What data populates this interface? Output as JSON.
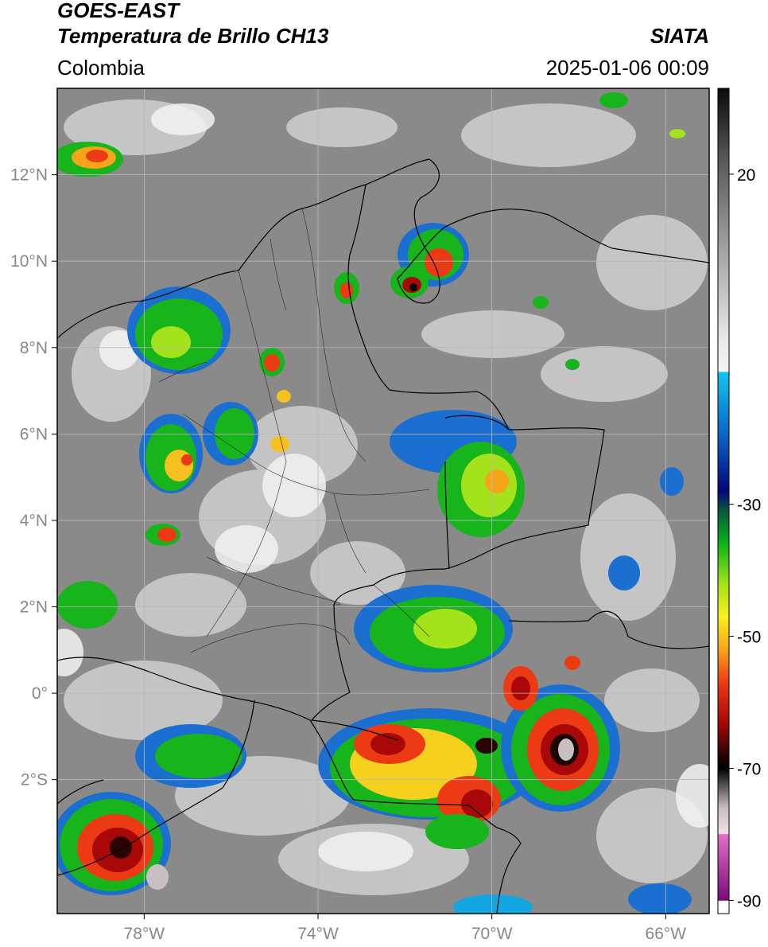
{
  "header": {
    "satellite": "GOES-EAST",
    "product": "Temperatura de Brillo CH13",
    "region": "Colombia",
    "brand": "SIATA",
    "datetime": "2025-01-06 00:09"
  },
  "map": {
    "lon_range": [
      -80,
      -65
    ],
    "lat_range": [
      -5.1,
      14
    ],
    "lon_ticks": [
      {
        "value": -78,
        "label": "78°W"
      },
      {
        "value": -74,
        "label": "74°W"
      },
      {
        "value": -70,
        "label": "70°W"
      },
      {
        "value": -66,
        "label": "66°W"
      }
    ],
    "lat_ticks": [
      {
        "value": 12,
        "label": "12°N"
      },
      {
        "value": 10,
        "label": "10°N"
      },
      {
        "value": 8,
        "label": "8°N"
      },
      {
        "value": 6,
        "label": "6°N"
      },
      {
        "value": 4,
        "label": "4°N"
      },
      {
        "value": 2,
        "label": "2°N"
      },
      {
        "value": 0,
        "label": "0°"
      },
      {
        "value": -2,
        "label": "2°S"
      }
    ],
    "background_color": "#8a8a8a",
    "border_color": "#000000",
    "grid_color": "#b8b8b8"
  },
  "colorbar": {
    "range": [
      -92,
      33
    ],
    "ticks": [
      {
        "value": 20,
        "label": "20"
      },
      {
        "value": -30,
        "label": "-30"
      },
      {
        "value": -50,
        "label": "-50"
      },
      {
        "value": -70,
        "label": "-70"
      },
      {
        "value": -90,
        "label": "-90"
      }
    ],
    "stops": [
      {
        "t": 33,
        "color": "#0a0a0a"
      },
      {
        "t": 22,
        "color": "#5a5a5a"
      },
      {
        "t": 10,
        "color": "#9a9a9a"
      },
      {
        "t": -5,
        "color": "#e8e8e8"
      },
      {
        "t": -9.9,
        "color": "#f5f5f5"
      },
      {
        "t": -10,
        "color": "#12c6ee"
      },
      {
        "t": -20,
        "color": "#0a5fc4"
      },
      {
        "t": -28,
        "color": "#06067a"
      },
      {
        "t": -31,
        "color": "#065a3c"
      },
      {
        "t": -36,
        "color": "#0ab416"
      },
      {
        "t": -42,
        "color": "#a2e21a"
      },
      {
        "t": -47,
        "color": "#f6f01e"
      },
      {
        "t": -52,
        "color": "#f6a51a"
      },
      {
        "t": -57,
        "color": "#ec3a14"
      },
      {
        "t": -63,
        "color": "#a80808"
      },
      {
        "t": -68,
        "color": "#2a0404"
      },
      {
        "t": -70,
        "color": "#000000"
      },
      {
        "t": -76,
        "color": "#c8c0c0"
      },
      {
        "t": -79.9,
        "color": "#efe0e6"
      },
      {
        "t": -80,
        "color": "#e070c8"
      },
      {
        "t": -90,
        "color": "#7a0c78"
      },
      {
        "t": -90.1,
        "color": "#ffffff"
      },
      {
        "t": -92,
        "color": "#ffffff"
      }
    ]
  }
}
